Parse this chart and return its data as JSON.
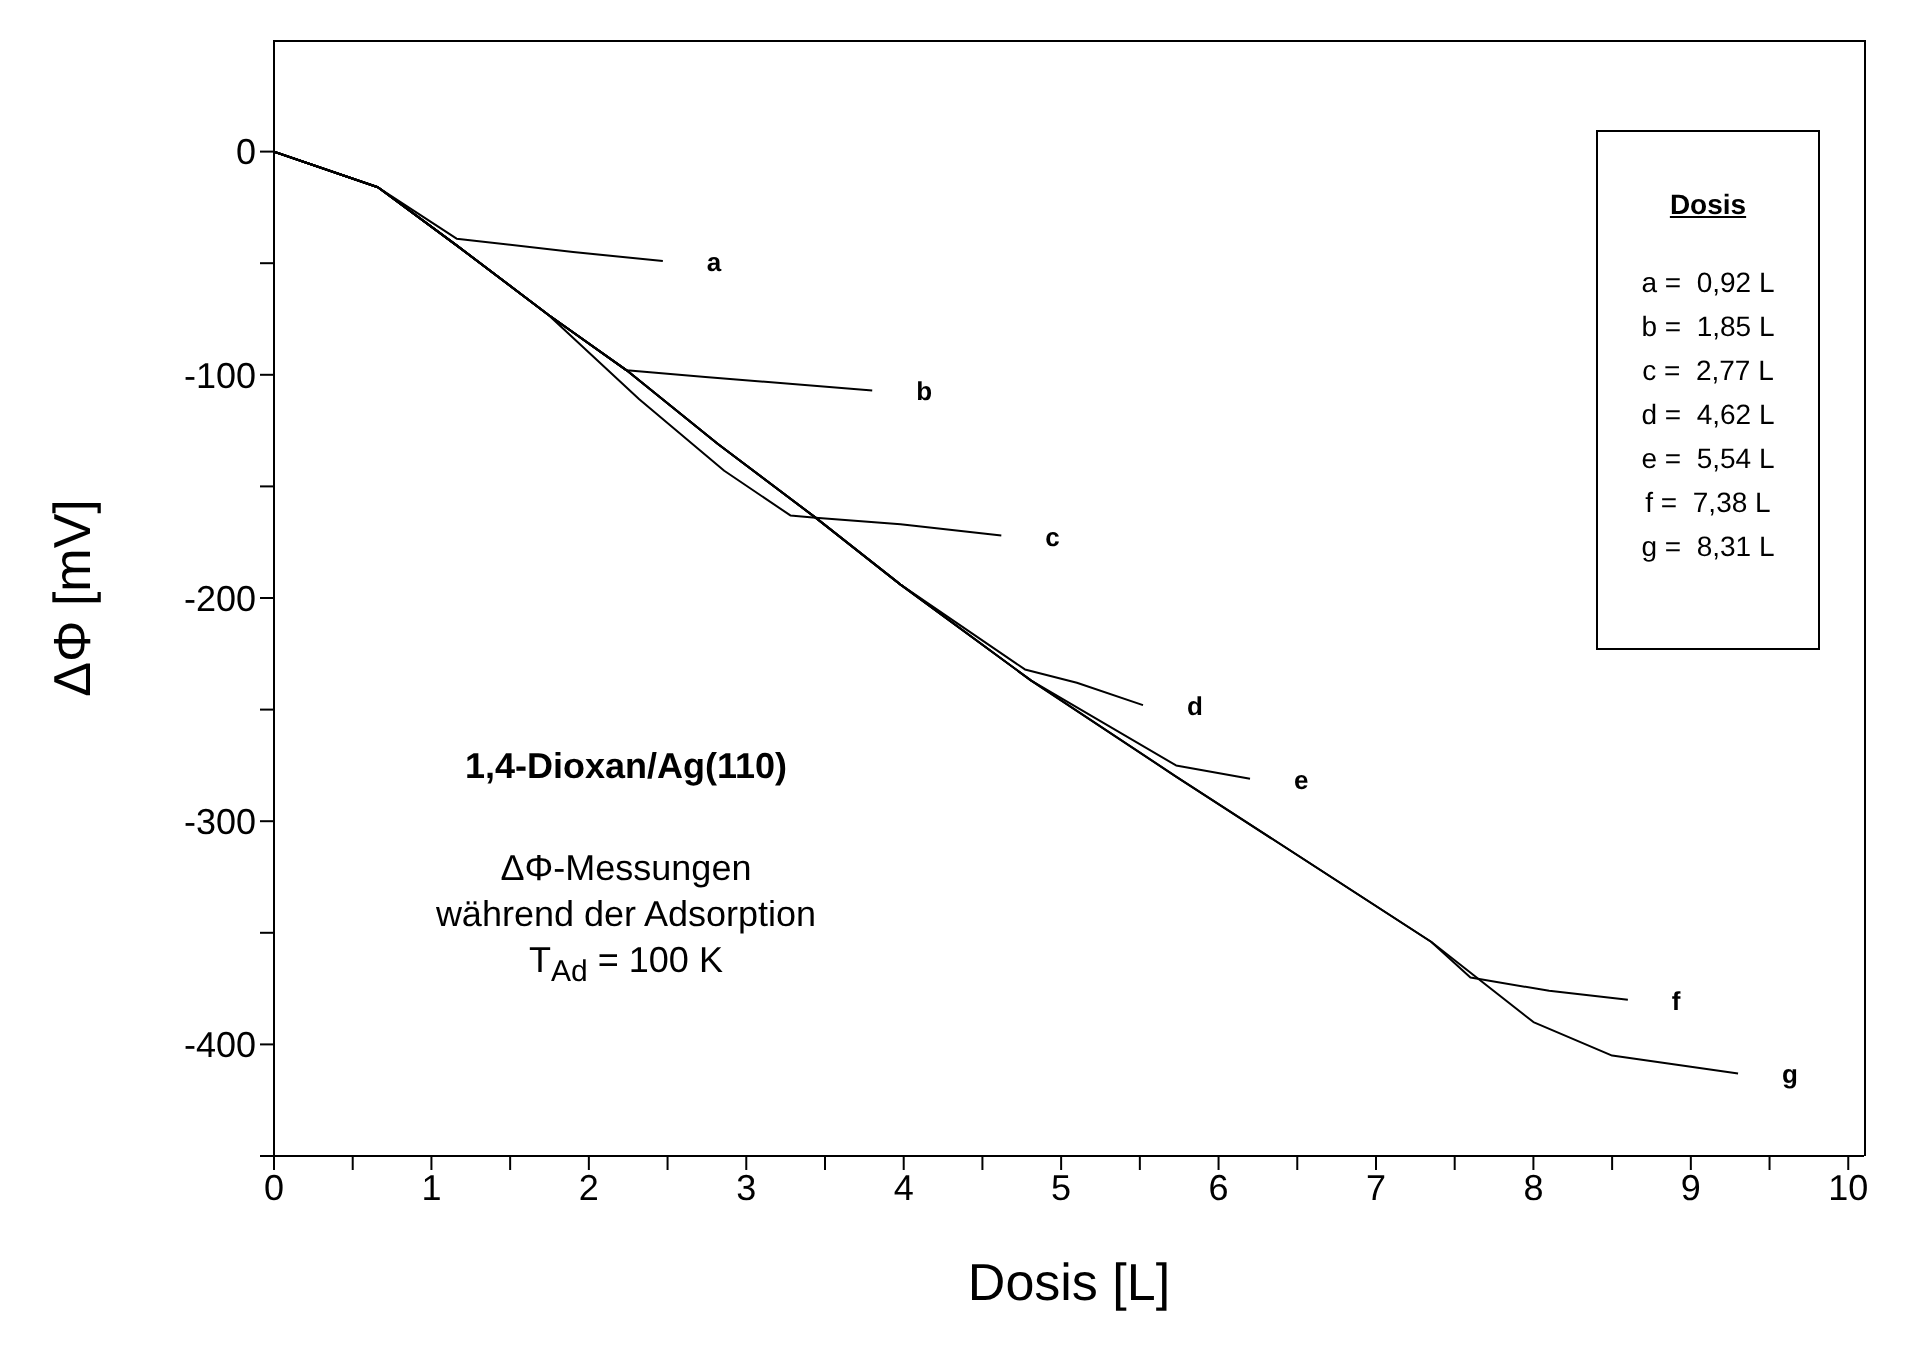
{
  "chart_data": {
    "type": "line",
    "xlabel": "Dosis  [L]",
    "ylabel": "ΔΦ [mV]",
    "legend_title": "Dosis",
    "xlim": [
      0,
      10.1
    ],
    "ylim": [
      -450,
      50
    ],
    "xticks": [
      0,
      {
        "value": 0.5,
        "label": null
      },
      1,
      {
        "value": 1.5,
        "label": null
      },
      2,
      {
        "value": 2.5,
        "label": null
      },
      3,
      {
        "value": 3.5,
        "label": null
      },
      4,
      {
        "value": 4.5,
        "label": null
      },
      5,
      {
        "value": 5.5,
        "label": null
      },
      6,
      {
        "value": 6.5,
        "label": null
      },
      7,
      {
        "value": 7.5,
        "label": null
      },
      8,
      {
        "value": 8.5,
        "label": null
      },
      9,
      {
        "value": 9.5,
        "label": null
      },
      10
    ],
    "yticks": [
      {
        "value": -450,
        "label": null
      },
      -400,
      {
        "value": -350,
        "label": null
      },
      -300,
      {
        "value": -250,
        "label": null
      },
      -200,
      {
        "value": -150,
        "label": null
      },
      -100,
      {
        "value": -50,
        "label": null
      },
      0
    ],
    "grid": false,
    "legend": false,
    "marker": "none",
    "line_style": "solid",
    "series": [
      {
        "name": "a",
        "color": "#000000",
        "x": [
          0,
          0.66,
          1.16,
          1.9,
          2.47
        ],
        "values": [
          0,
          -16,
          -39,
          -45,
          -49
        ]
      },
      {
        "name": "b",
        "color": "#000000",
        "x": [
          0,
          0.66,
          1.16,
          1.74,
          2.24,
          2.74,
          3.8
        ],
        "values": [
          0,
          -16,
          -42,
          -73,
          -98,
          -101,
          -107
        ]
      },
      {
        "name": "c",
        "color": "#000000",
        "x": [
          0,
          0.66,
          1.16,
          1.74,
          2.32,
          2.86,
          3.28,
          3.44,
          3.98,
          4.62
        ],
        "values": [
          0,
          -16,
          -42,
          -73,
          -111,
          -143,
          -163,
          -164,
          -167,
          -172
        ]
      },
      {
        "name": "d",
        "color": "#000000",
        "x": [
          0,
          0.66,
          1.16,
          1.74,
          2.24,
          2.82,
          3.44,
          3.98,
          4.77,
          5.1,
          5.52
        ],
        "values": [
          0,
          -16,
          -42,
          -73,
          -98,
          -131,
          -164,
          -194,
          -232,
          -238,
          -248
        ]
      },
      {
        "name": "e",
        "color": "#000000",
        "x": [
          0,
          0.66,
          1.16,
          1.74,
          2.24,
          2.82,
          3.44,
          3.98,
          4.81,
          5.73,
          6.2
        ],
        "values": [
          0,
          -16,
          -42,
          -73,
          -98,
          -131,
          -164,
          -194,
          -237,
          -275,
          -281
        ]
      },
      {
        "name": "f",
        "color": "#000000",
        "x": [
          0,
          0.66,
          1.16,
          1.74,
          2.24,
          2.82,
          3.44,
          3.98,
          4.81,
          5.73,
          7.35,
          7.6,
          8.1,
          8.6
        ],
        "values": [
          0,
          -16,
          -42,
          -73,
          -98,
          -131,
          -164,
          -194,
          -237,
          -280,
          -354,
          -370,
          -376,
          -380
        ]
      },
      {
        "name": "g",
        "color": "#000000",
        "x": [
          0,
          0.66,
          1.16,
          1.74,
          2.24,
          2.82,
          3.44,
          3.98,
          4.81,
          5.73,
          7.35,
          8.0,
          8.5,
          8.9,
          9.3
        ],
        "values": [
          0,
          -16,
          -42,
          -73,
          -98,
          -131,
          -164,
          -194,
          -237,
          -280,
          -354,
          -390,
          -405,
          -409,
          -413
        ]
      }
    ],
    "annotations": [
      "a =  0,92 L",
      "b =  1,85 L",
      "c =  2,77 L",
      "d =  4,62 L",
      "e =  5,54 L",
      "f =  7,38 L",
      "g =  8,31 L",
      "1,4-Dioxan/Ag(110)",
      "ΔΦ-Messungen",
      "während der Adsorption",
      "T$_{Ad}$ = 100 K"
    ]
  }
}
